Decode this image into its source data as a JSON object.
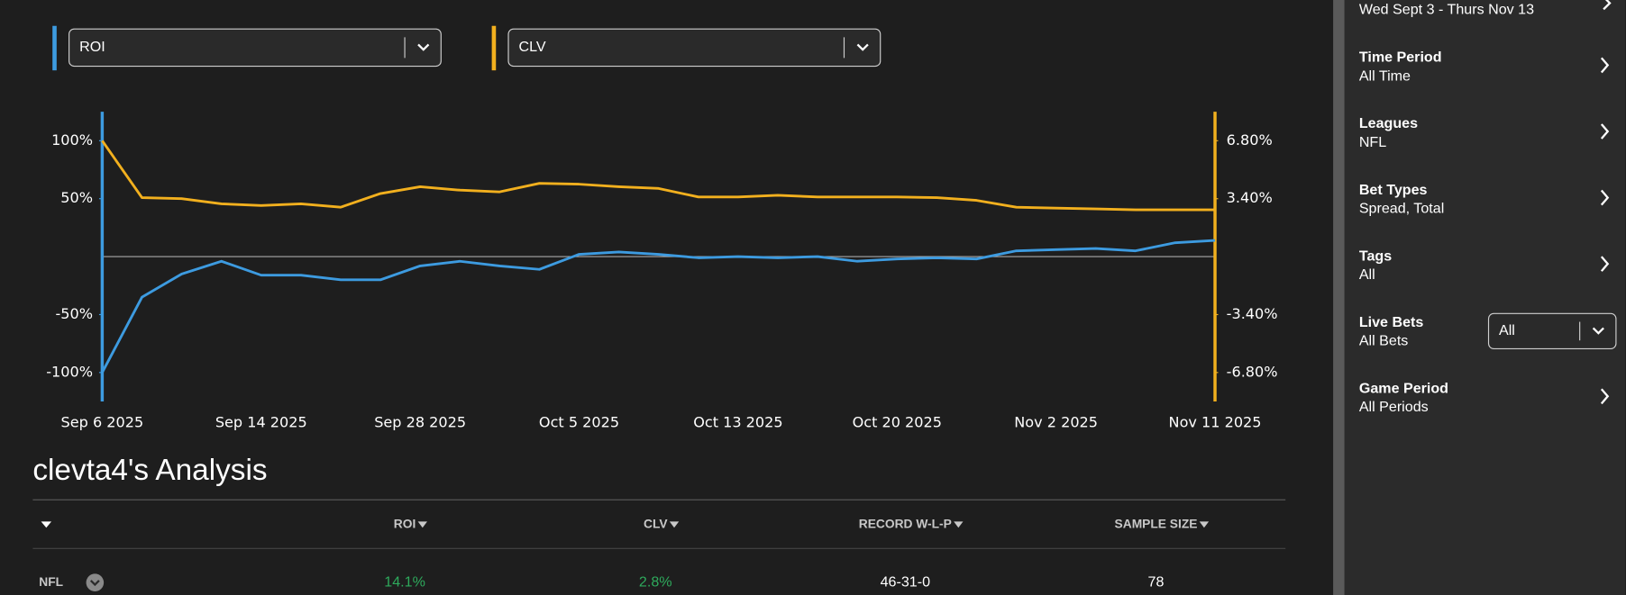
{
  "chart_data": {
    "type": "line",
    "categories": [
      "Sep 6 2025",
      null,
      null,
      null,
      "Sep 14 2025",
      null,
      null,
      null,
      "Sep 28 2025",
      null,
      null,
      null,
      "Oct 5 2025",
      null,
      null,
      null,
      "Oct 13 2025",
      null,
      null,
      null,
      "Oct 20 2025",
      null,
      null,
      null,
      "Nov 2 2025",
      null,
      null,
      null,
      "Nov 11 2025"
    ],
    "series": [
      {
        "name": "ROI",
        "color": "#3d9be0",
        "values": [
          -100,
          -35,
          -15,
          -4,
          -16,
          -16,
          -20,
          -20,
          -8,
          -4,
          -8,
          -11,
          2,
          4,
          2,
          -1,
          0,
          -1,
          0,
          -4,
          -2,
          -1,
          -2,
          5,
          6,
          7,
          5,
          12,
          14
        ]
      },
      {
        "name": "CLV",
        "color": "#f2b01e",
        "axis": "y2",
        "values": [
          6.8,
          3.46,
          3.4,
          3.1,
          3.0,
          3.1,
          2.9,
          3.7,
          4.1,
          3.9,
          3.8,
          4.3,
          4.25,
          4.1,
          4.0,
          3.5,
          3.5,
          3.6,
          3.5,
          3.5,
          3.5,
          3.46,
          3.3,
          2.9,
          2.85,
          2.8,
          2.75,
          2.75,
          2.75
        ]
      }
    ],
    "ylim": [
      -125,
      125
    ],
    "yticks": [
      {
        "value": 100,
        "label": "100%"
      },
      {
        "value": 50,
        "label": "50%"
      },
      {
        "value": -50,
        "label": "-50%"
      },
      {
        "value": -100,
        "label": "-100%"
      }
    ],
    "y2lim": [
      -8.5,
      8.5
    ],
    "y2ticks": [
      {
        "value": 6.8,
        "label": "6.80%"
      },
      {
        "value": 3.4,
        "label": "3.40%"
      },
      {
        "value": -3.4,
        "label": "-3.40%"
      },
      {
        "value": -6.8,
        "label": "-6.80%"
      }
    ]
  },
  "analysis": {
    "title": "clevta4's Analysis",
    "columns": [
      "ROI",
      "CLV",
      "RECORD W-L-P",
      "SAMPLE SIZE"
    ],
    "rows": [
      [
        "NFL",
        "14.1%",
        "2.8%",
        "46-31-0",
        "78"
      ]
    ]
  },
  "sidebar": {
    "date_range": "Wed Sept 3 - Thurs Nov 13",
    "filters": [
      {
        "label": "Time Period",
        "value": "All Time"
      },
      {
        "label": "Leagues",
        "value": "NFL"
      },
      {
        "label": "Bet Types",
        "value": "Spread, Total"
      },
      {
        "label": "Tags",
        "value": "All"
      },
      {
        "label": "Live Bets",
        "value": "All Bets",
        "dropdown": "All"
      },
      {
        "label": "Game Period",
        "value": "All Periods"
      }
    ]
  }
}
